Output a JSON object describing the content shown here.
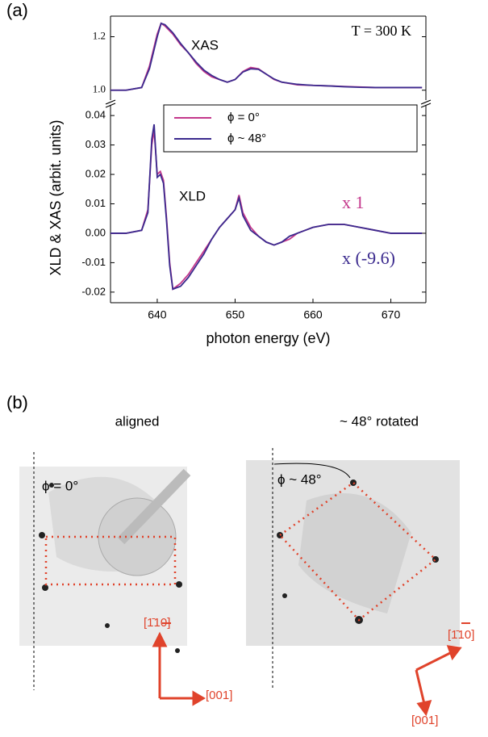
{
  "panel_a": {
    "label": "(a)",
    "ylabel": "XLD & XAS (arbit. units)"
  },
  "chart_data": [
    {
      "type": "line",
      "title": "XAS",
      "annotations": [
        "T = 300 K"
      ],
      "xlim": [
        634,
        674.5
      ],
      "ylim": [
        0.963,
        1.277
      ],
      "yticks": [
        {
          "value": 1.0,
          "label": "1.0"
        },
        {
          "value": 1.2,
          "label": "1.2"
        }
      ],
      "x": [
        634,
        636,
        638,
        639,
        640,
        640.5,
        641,
        642,
        643,
        644,
        645,
        646,
        647,
        648,
        649,
        650,
        651,
        652,
        653,
        654,
        655,
        656,
        658,
        660,
        662,
        664,
        666,
        668,
        670,
        672,
        674
      ],
      "series": [
        {
          "name": "ϕ = 0°",
          "color": "#c4378b",
          "values": [
            1.0,
            1.0,
            1.01,
            1.09,
            1.21,
            1.25,
            1.24,
            1.21,
            1.17,
            1.14,
            1.1,
            1.07,
            1.05,
            1.04,
            1.03,
            1.04,
            1.07,
            1.085,
            1.08,
            1.06,
            1.04,
            1.03,
            1.02,
            1.018,
            1.016,
            1.014,
            1.012,
            1.01,
            1.01,
            1.01,
            1.01
          ]
        },
        {
          "name": "ϕ ~ 48°",
          "color": "#3b2a8e",
          "values": [
            1.0,
            1.0,
            1.01,
            1.08,
            1.2,
            1.25,
            1.245,
            1.215,
            1.175,
            1.14,
            1.105,
            1.075,
            1.055,
            1.04,
            1.03,
            1.04,
            1.068,
            1.08,
            1.078,
            1.06,
            1.042,
            1.03,
            1.022,
            1.018,
            1.016,
            1.013,
            1.011,
            1.01,
            1.01,
            1.01,
            1.01
          ]
        }
      ]
    },
    {
      "type": "line",
      "title": "XLD",
      "annotations": [
        "x 1",
        "x (-9.6)"
      ],
      "xlabel": "photon energy (eV)",
      "xlim": [
        634,
        674.5
      ],
      "ylim": [
        -0.0236,
        0.0436
      ],
      "xticks": [
        640,
        650,
        660,
        670
      ],
      "yticks": [
        -0.02,
        -0.01,
        {
          "value": 0,
          "label": "0.00"
        },
        0.01,
        0.02,
        0.03,
        0.04
      ],
      "x": [
        634,
        636,
        638,
        638.8,
        639.3,
        639.6,
        640,
        640.4,
        640.8,
        641.2,
        641.6,
        642,
        643,
        644,
        645,
        646,
        647,
        648,
        649,
        650,
        650.5,
        651,
        652,
        653,
        654,
        655,
        656,
        657,
        658,
        660,
        662,
        664,
        666,
        668,
        670,
        672,
        674
      ],
      "series": [
        {
          "name": "ϕ = 0°",
          "color": "#c4378b",
          "values": [
            0,
            0,
            0.001,
            0.008,
            0.03,
            0.035,
            0.02,
            0.021,
            0.018,
            0.005,
            -0.01,
            -0.019,
            -0.017,
            -0.014,
            -0.01,
            -0.006,
            -0.002,
            0.002,
            0.005,
            0.008,
            0.013,
            0.007,
            0.002,
            -0.001,
            -0.003,
            -0.004,
            -0.003,
            -0.002,
            0,
            0.002,
            0.003,
            0.003,
            0.002,
            0.001,
            0,
            0,
            0
          ]
        },
        {
          "name": "ϕ ~ 48°",
          "color": "#3b2a8e",
          "values": [
            0,
            0,
            0.001,
            0.007,
            0.032,
            0.037,
            0.019,
            0.02,
            0.017,
            0.004,
            -0.011,
            -0.019,
            -0.018,
            -0.015,
            -0.011,
            -0.007,
            -0.002,
            0.002,
            0.005,
            0.008,
            0.012,
            0.006,
            0.001,
            -0.001,
            -0.003,
            -0.004,
            -0.003,
            -0.001,
            0,
            0.002,
            0.003,
            0.003,
            0.002,
            0.001,
            0,
            0,
            0
          ]
        }
      ]
    }
  ],
  "panel_b": {
    "label": "(b)",
    "left_title": "aligned",
    "right_title": "~ 48° rotated",
    "left_angle": "ϕ = 0°",
    "right_angle": "ϕ ~ 48°",
    "left_axis_a": "[1̄10]",
    "left_axis_b": "[001]",
    "right_axis_a": "[1̄10]",
    "right_axis_b": "[001]"
  }
}
